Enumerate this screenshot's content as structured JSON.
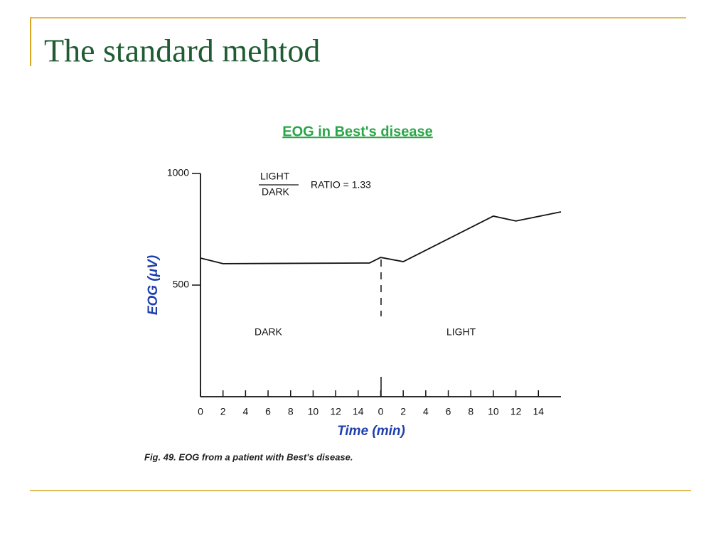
{
  "slide_title": "The standard mehtod",
  "chart_data": {
    "type": "line",
    "title": "EOG in Best's disease",
    "y_label": "EOG (μV)",
    "x_label": "Time (min)",
    "caption": "Fig. 49. EOG from a patient with Best's disease.",
    "annotations": {
      "ratio_numerator": "LIGHT",
      "ratio_denominator": "DARK",
      "ratio": "RATIO = 1.33",
      "dark_phase": "DARK",
      "light_phase": "LIGHT"
    },
    "xlim": [
      0,
      32
    ],
    "ylim": [
      0,
      1000
    ],
    "yticks": [
      500,
      1000
    ],
    "xticks": [
      0,
      2,
      4,
      6,
      8,
      10,
      12,
      14,
      {
        "value": 16,
        "label": "0"
      },
      {
        "value": 18,
        "label": "2"
      },
      {
        "value": 20,
        "label": "4"
      },
      {
        "value": 22,
        "label": "6"
      },
      {
        "value": 24,
        "label": "8"
      },
      {
        "value": 26,
        "label": "10"
      },
      {
        "value": 28,
        "label": "12"
      },
      {
        "value": 30,
        "label": "14"
      }
    ],
    "series": [
      {
        "name": "EOG",
        "color": "#111111",
        "x": [
          0,
          2,
          15,
          16,
          18,
          26,
          28,
          32
        ],
        "values": [
          621,
          596,
          599,
          624,
          605,
          809,
          787,
          828
        ]
      }
    ]
  }
}
